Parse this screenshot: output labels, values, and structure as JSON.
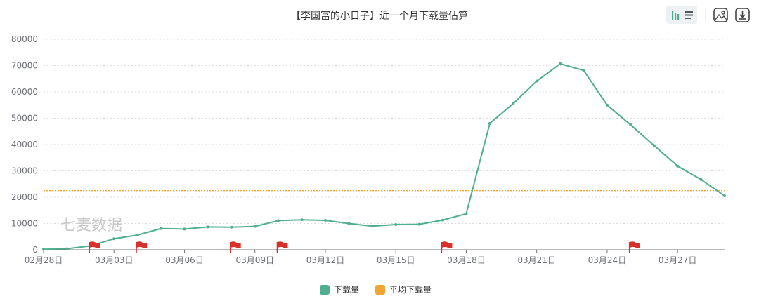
{
  "chart_data": {
    "type": "line",
    "title": "【李国富的小日子】近一个月下载量估算",
    "xlabel": "",
    "ylabel": "",
    "ylim": [
      0,
      80000
    ],
    "y_ticks": [
      "0",
      "10000",
      "20000",
      "30000",
      "40000",
      "50000",
      "60000",
      "70000",
      "80000"
    ],
    "x_tick_labels": [
      "02月28日",
      "03月03日",
      "03月06日",
      "03月09日",
      "03月12日",
      "03月15日",
      "03月18日",
      "03月21日",
      "03月24日",
      "03月27日"
    ],
    "x_tick_days": [
      0,
      3,
      6,
      9,
      12,
      15,
      18,
      21,
      24,
      27
    ],
    "x_days_total": 29,
    "grid": true,
    "legend_position": "bottom-center",
    "series": [
      {
        "name": "下载量",
        "color": "#4fae8f",
        "values": [
          200,
          400,
          1500,
          4200,
          5600,
          8100,
          7900,
          8700,
          8600,
          8900,
          11100,
          11400,
          11200,
          10000,
          9000,
          9600,
          9700,
          11300,
          13700,
          48000,
          55600,
          64100,
          70700,
          68200,
          55000,
          47500,
          39600,
          31800,
          26700,
          20500
        ]
      },
      {
        "name": "平均下载量",
        "color": "#f0a732",
        "constant": 22500
      }
    ],
    "event_flags_days": [
      2.1,
      4.1,
      8.1,
      10.1,
      17.1,
      25.1
    ],
    "flag_color": "#d8302a",
    "watermark": "七麦数据"
  },
  "toolbar": {
    "icons": [
      "bar-line-toggle-icon",
      "image-export-icon",
      "download-icon"
    ]
  }
}
